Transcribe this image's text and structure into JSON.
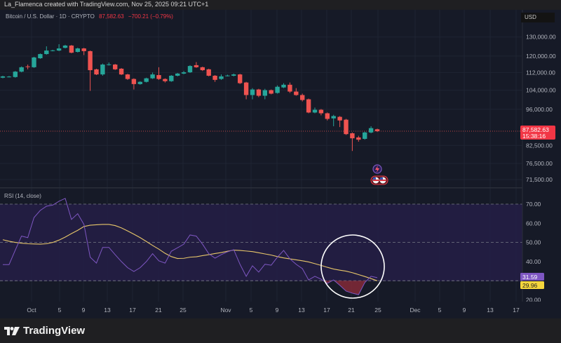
{
  "credit": "La_Flamenca created with TradingView.com, Nov 25, 2025 09:21 UTC+1",
  "header": {
    "symbol": "Bitcoin / U.S. Dollar · 1D · CRYPTO",
    "price": "87,582.63",
    "change": "−700.21 (−0.79%)"
  },
  "currency_button": "USD",
  "colors": {
    "up": "#26a69a",
    "down": "#ef5350",
    "rsi": "#7e57c2",
    "rsi_ma": "#e8c76a",
    "background": "#161a27",
    "annotation_circle": "#ffffff"
  },
  "price_axis": {
    "scale": "log",
    "ticks": [
      {
        "value": 130000,
        "label": "130,000.00"
      },
      {
        "value": 120000,
        "label": "120,000.00"
      },
      {
        "value": 112000,
        "label": "112,000.00"
      },
      {
        "value": 104000,
        "label": "104,000.00"
      },
      {
        "value": 96000,
        "label": "96,000.00"
      },
      {
        "value": 82500,
        "label": "82,500.00"
      },
      {
        "value": 76500,
        "label": "76,500.00"
      },
      {
        "value": 71500,
        "label": "71,500.00"
      }
    ],
    "last_price": 87582.63,
    "last_price_label": "87,582.63",
    "countdown": "15:38:16"
  },
  "rsi": {
    "title": "RSI (14, close)",
    "ticks": [
      {
        "value": 70,
        "label": "70.00"
      },
      {
        "value": 60,
        "label": "60.00"
      },
      {
        "value": 50,
        "label": "50.00"
      },
      {
        "value": 40,
        "label": "40.00"
      },
      {
        "value": 20,
        "label": "20.00"
      }
    ],
    "bands": [
      70,
      50,
      30
    ],
    "rsi_label": "31.59",
    "ma_label": "29.96"
  },
  "date_axis": [
    "Oct",
    "5",
    "9",
    "13",
    "17",
    "21",
    "25",
    "Nov",
    "5",
    "9",
    "13",
    "17",
    "21",
    "25",
    "Dec",
    "5",
    "9",
    "13",
    "17"
  ],
  "chart_data": {
    "type": "candlestick",
    "x_range": [
      "2025-09-26",
      "2025-11-25"
    ],
    "ohlc": [
      [
        109600,
        110500,
        109300,
        110200
      ],
      [
        110000,
        110400,
        109700,
        110100
      ],
      [
        109900,
        112700,
        109600,
        112400
      ],
      [
        112400,
        114900,
        112100,
        114500
      ],
      [
        114900,
        115800,
        113500,
        114600
      ],
      [
        114500,
        119600,
        114200,
        119300
      ],
      [
        118900,
        121300,
        118600,
        121000
      ],
      [
        121000,
        125000,
        120700,
        122800
      ],
      [
        122700,
        123200,
        122400,
        122900
      ],
      [
        122800,
        126100,
        122500,
        123900
      ],
      [
        124200,
        125800,
        123900,
        125400
      ],
      [
        125400,
        125700,
        121400,
        121700
      ],
      [
        122100,
        124300,
        121800,
        123900
      ],
      [
        123900,
        124200,
        120500,
        122500
      ],
      [
        122500,
        122800,
        103700,
        113100
      ],
      [
        113500,
        113800,
        110800,
        111100
      ],
      [
        111100,
        116300,
        110500,
        115800
      ],
      [
        115700,
        116800,
        115300,
        115900
      ],
      [
        115800,
        116100,
        113200,
        113500
      ],
      [
        113800,
        114100,
        110800,
        111100
      ],
      [
        111100,
        111400,
        108600,
        109000
      ],
      [
        109000,
        109300,
        104300,
        106700
      ],
      [
        106700,
        108000,
        106400,
        107700
      ],
      [
        107700,
        109600,
        107400,
        109300
      ],
      [
        109300,
        112000,
        109000,
        111100
      ],
      [
        110800,
        114500,
        108600,
        109000
      ],
      [
        109000,
        109300,
        107400,
        108000
      ],
      [
        108000,
        110800,
        107700,
        110500
      ],
      [
        110500,
        111800,
        110200,
        111500
      ],
      [
        111500,
        112700,
        111200,
        112100
      ],
      [
        112100,
        115500,
        111800,
        115100
      ],
      [
        115500,
        117000,
        114200,
        114500
      ],
      [
        114500,
        114800,
        112700,
        113100
      ],
      [
        113500,
        113800,
        110200,
        110500
      ],
      [
        110500,
        110800,
        107700,
        108600
      ],
      [
        109000,
        111100,
        108600,
        110200
      ],
      [
        110400,
        111000,
        110200,
        110600
      ],
      [
        110500,
        111500,
        110200,
        111100
      ],
      [
        111100,
        111400,
        106700,
        107100
      ],
      [
        107400,
        107700,
        100100,
        101900
      ],
      [
        101900,
        104900,
        100100,
        104300
      ],
      [
        104300,
        104600,
        101000,
        101600
      ],
      [
        101600,
        104600,
        100100,
        104000
      ],
      [
        104000,
        104300,
        102200,
        102500
      ],
      [
        102800,
        106100,
        102500,
        105500
      ],
      [
        105200,
        107100,
        104900,
        106400
      ],
      [
        106400,
        107400,
        102800,
        103400
      ],
      [
        103400,
        104900,
        101600,
        101900
      ],
      [
        101900,
        102500,
        99200,
        99800
      ],
      [
        100100,
        100400,
        94400,
        94700
      ],
      [
        94700,
        96700,
        94400,
        95800
      ],
      [
        95800,
        96100,
        93600,
        94400
      ],
      [
        94400,
        94700,
        91600,
        92200
      ],
      [
        92400,
        93800,
        89400,
        93300
      ],
      [
        93000,
        93300,
        89100,
        91600
      ],
      [
        91900,
        92200,
        86200,
        86500
      ],
      [
        86800,
        87100,
        80600,
        85000
      ],
      [
        85300,
        85900,
        83800,
        84500
      ],
      [
        84800,
        87400,
        84500,
        87100
      ],
      [
        87100,
        89400,
        86800,
        88700
      ],
      [
        88283,
        88500,
        87300,
        87583
      ]
    ],
    "rsi_values": [
      38.4,
      38.4,
      46,
      53.3,
      52.5,
      63,
      66.7,
      68.9,
      69.5,
      71.5,
      73,
      62,
      65,
      59.4,
      42.3,
      39.2,
      47.4,
      47.4,
      43.6,
      40,
      36.8,
      34.8,
      36.8,
      40,
      44.1,
      40.4,
      39.2,
      45.4,
      47.2,
      49.1,
      53.9,
      53.3,
      49.1,
      44.1,
      41.8,
      43.6,
      45.1,
      46.2,
      38.6,
      32.3,
      37.8,
      34.5,
      38.6,
      38.1,
      42.3,
      45.8,
      41.4,
      38.6,
      36.3,
      30.4,
      32.3,
      30.8,
      28.6,
      30.4,
      27.6,
      24.6,
      23.5,
      22.7,
      29,
      32.3,
      31.59
    ],
    "rsi_ma_values": [
      51.4,
      50.6,
      50,
      49.6,
      49.3,
      49.2,
      49.1,
      49.3,
      50,
      51.2,
      52.8,
      54.6,
      56.3,
      58.3,
      59,
      59.2,
      59.4,
      59.4,
      58.8,
      57.6,
      56,
      54.3,
      52.5,
      50.5,
      48.4,
      46.5,
      44.3,
      42.6,
      41.6,
      41.7,
      42.3,
      42.5,
      43.1,
      43.6,
      44.2,
      44.7,
      45.4,
      46,
      45.8,
      45.5,
      45.2,
      44.6,
      44,
      43.4,
      42.6,
      41.9,
      41.4,
      40.9,
      40.4,
      39.8,
      38.9,
      38,
      37,
      36.1,
      35.5,
      35,
      34.2,
      33.2,
      32.2,
      31.1,
      29.96
    ],
    "rsi_ylim": [
      20,
      70
    ]
  },
  "events": [
    "lightning-event-icon",
    "us-flag-event-icon"
  ],
  "branding": "TradingView"
}
